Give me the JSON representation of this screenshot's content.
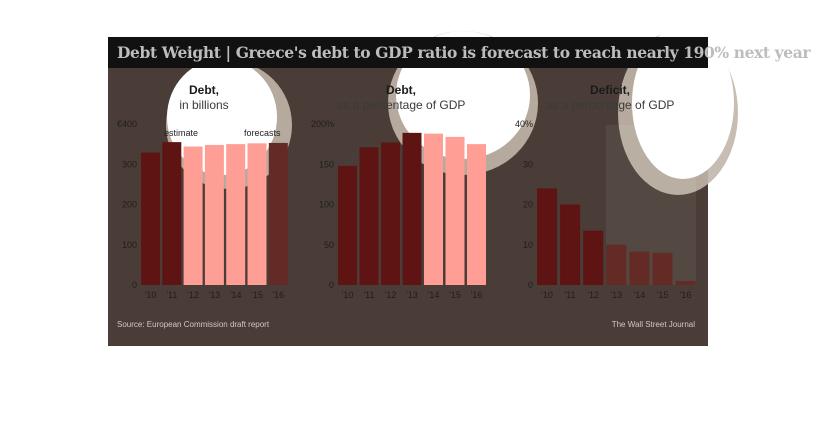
{
  "headline": {
    "bold": "Debt Weight",
    "separator": "|",
    "text": "Greece's debt to GDP ratio is forecast to reach nearly 190% next year"
  },
  "source": "Source: European Commission draft report",
  "credit": "The Wall Street Journal",
  "colors": {
    "overlay": "#4a3d37",
    "historical_bar": "#5e1412",
    "forecast_bar": "#642a25",
    "highlight_historical": "#e8221a",
    "highlight_forecast": "#ff9e94",
    "header_bar": "#111111"
  },
  "chart_data": [
    {
      "type": "bar",
      "title": "Debt,",
      "subtitle": "in billions",
      "categories": [
        "'10",
        "'11",
        "'12",
        "'13",
        "'14",
        "'15",
        "'16"
      ],
      "values": [
        329,
        355,
        344,
        348,
        350,
        352,
        353
      ],
      "forecast_from_index": 2,
      "ylim": [
        0,
        400
      ],
      "yticks": [
        0,
        100,
        200,
        300,
        400
      ],
      "ytick_labels": [
        "0",
        "100",
        "200",
        "300",
        "€400"
      ],
      "annotations": [
        "estimate",
        "forecasts"
      ],
      "grid": false
    },
    {
      "type": "bar",
      "title": "Debt,",
      "subtitle": "as a percentage of GDP",
      "categories": [
        "'10",
        "'11",
        "'12",
        "'13",
        "'14",
        "'15",
        "'16"
      ],
      "values": [
        148,
        171,
        177,
        189,
        188,
        184,
        175
      ],
      "forecast_from_index": 4,
      "ylim": [
        0,
        200
      ],
      "yticks": [
        0,
        50,
        100,
        150,
        200
      ],
      "ytick_labels": [
        "0",
        "50",
        "100",
        "150",
        "200%"
      ],
      "grid": false
    },
    {
      "type": "bar",
      "title": "Deficit,",
      "subtitle": "as a percentage of GDP",
      "categories": [
        "'10",
        "'11",
        "'12",
        "'13",
        "'14",
        "'15",
        "'16"
      ],
      "values": [
        24,
        20,
        13.5,
        10,
        8.3,
        8,
        1
      ],
      "forecast_from_index": 3,
      "ylim": [
        0,
        40
      ],
      "yticks": [
        0,
        10,
        20,
        30,
        40
      ],
      "ytick_labels": [
        "0",
        "10",
        "20",
        "30",
        "40%"
      ],
      "grid": false
    }
  ]
}
